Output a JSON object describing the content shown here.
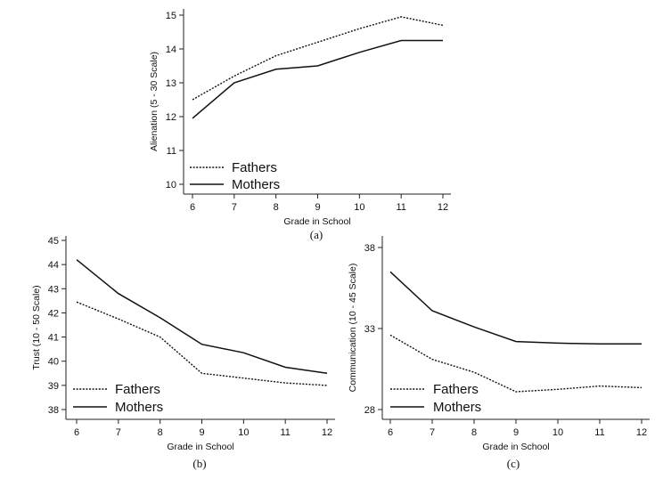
{
  "figure": {
    "panels": [
      "(a)",
      "(b)",
      "(c)"
    ]
  },
  "chart_data": [
    {
      "type": "line",
      "panel_label": "(a)",
      "xlabel": "Grade in School",
      "ylabel": "Alienation (5 - 30 Scale)",
      "x": [
        6,
        7,
        8,
        9,
        10,
        11,
        12
      ],
      "xlim": [
        6,
        12
      ],
      "ylim": [
        10,
        15
      ],
      "yticks": [
        10,
        11,
        12,
        13,
        14,
        15
      ],
      "legend": "bottom-left",
      "grid": false,
      "series": [
        {
          "name": "Fathers",
          "style": "dotted",
          "values": [
            12.5,
            13.2,
            13.8,
            14.2,
            14.6,
            14.95,
            14.7
          ]
        },
        {
          "name": "Mothers",
          "style": "solid",
          "values": [
            11.95,
            13.0,
            13.4,
            13.5,
            13.9,
            14.25,
            14.25
          ]
        }
      ]
    },
    {
      "type": "line",
      "panel_label": "(b)",
      "xlabel": "Grade in School",
      "ylabel": "Trust (10 - 50 Scale)",
      "x": [
        6,
        7,
        8,
        9,
        10,
        11,
        12
      ],
      "xlim": [
        6,
        12
      ],
      "ylim": [
        38,
        45
      ],
      "yticks": [
        38,
        39,
        40,
        41,
        42,
        43,
        44,
        45
      ],
      "legend": "bottom-left",
      "grid": false,
      "series": [
        {
          "name": "Fathers",
          "style": "dotted",
          "values": [
            42.45,
            41.75,
            41.0,
            39.5,
            39.3,
            39.1,
            39.0
          ]
        },
        {
          "name": "Mothers",
          "style": "solid",
          "values": [
            44.2,
            42.8,
            41.8,
            40.7,
            40.35,
            39.75,
            39.5
          ]
        }
      ]
    },
    {
      "type": "line",
      "panel_label": "(c)",
      "xlabel": "Grade in School",
      "ylabel": "Communication (10 - 45 Scale)",
      "x": [
        6,
        7,
        8,
        9,
        10,
        11,
        12
      ],
      "xlim": [
        6,
        12
      ],
      "ylim": [
        28,
        38
      ],
      "yticks": [
        28,
        33,
        38
      ],
      "legend": "bottom-left",
      "grid": false,
      "series": [
        {
          "name": "Fathers",
          "style": "dotted",
          "values": [
            32.6,
            31.1,
            30.3,
            29.1,
            29.25,
            29.45,
            29.35
          ]
        },
        {
          "name": "Mothers",
          "style": "solid",
          "values": [
            36.5,
            34.1,
            33.1,
            32.2,
            32.1,
            32.05,
            32.05
          ]
        }
      ]
    }
  ]
}
